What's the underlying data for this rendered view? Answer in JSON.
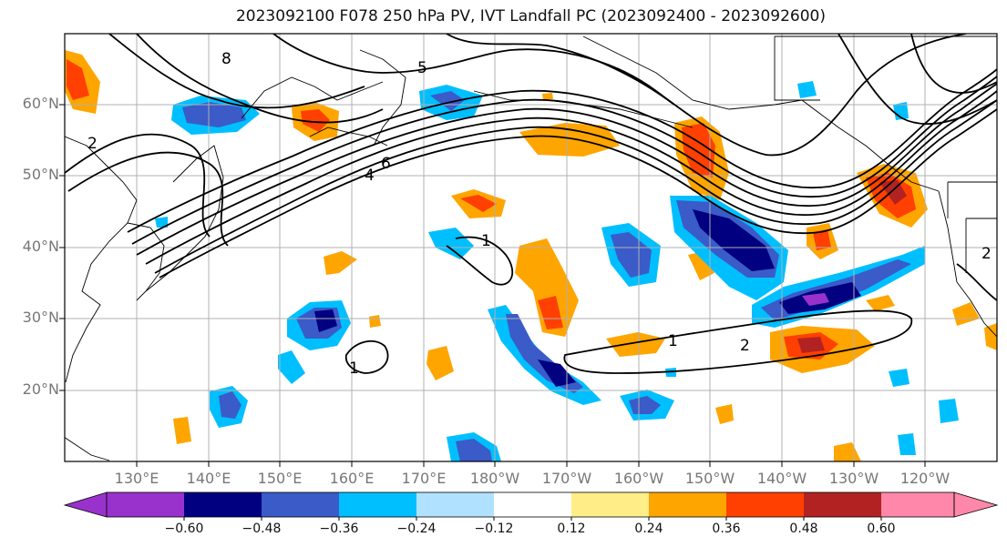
{
  "title": "2023092100 F078 250 hPa PV, IVT Landfall PC (2023092400 - 2023092600)",
  "lat_labels": [
    "60°N",
    "50°N",
    "40°N",
    "30°N",
    "20°N"
  ],
  "lon_labels": [
    "130°E",
    "140°E",
    "150°E",
    "160°E",
    "170°E",
    "180°W",
    "170°W",
    "160°W",
    "150°W",
    "140°W",
    "130°W",
    "120°W"
  ],
  "colorbar": {
    "colors": [
      "#9932cc",
      "#000080",
      "#3a5bc8",
      "#00bfff",
      "#b0e2ff",
      "#ffffff",
      "#ffee88",
      "#ffa500",
      "#ff4000",
      "#b22222",
      "#ff88aa"
    ],
    "ticks": [
      "−0.60",
      "−0.48",
      "−0.36",
      "−0.24",
      "−0.12",
      "0.12",
      "0.24",
      "0.36",
      "0.48",
      "0.60"
    ]
  },
  "pv_contour_labels": [
    "1",
    "1",
    "1",
    "2",
    "2",
    "2",
    "6",
    "8",
    "5",
    "4"
  ]
}
